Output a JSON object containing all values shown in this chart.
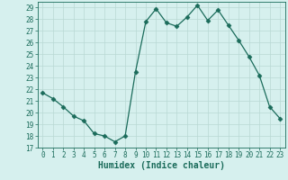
{
  "x": [
    0,
    1,
    2,
    3,
    4,
    5,
    6,
    7,
    8,
    9,
    10,
    11,
    12,
    13,
    14,
    15,
    16,
    17,
    18,
    19,
    20,
    21,
    22,
    23
  ],
  "y": [
    21.7,
    21.2,
    20.5,
    19.7,
    19.3,
    18.2,
    18.0,
    17.5,
    18.0,
    23.5,
    27.8,
    28.9,
    27.7,
    27.4,
    28.2,
    29.2,
    27.9,
    28.8,
    27.5,
    26.2,
    24.8,
    23.2,
    20.5,
    19.5
  ],
  "xlabel": "Humidex (Indice chaleur)",
  "xlim": [
    -0.5,
    23.5
  ],
  "ylim": [
    17,
    29.5
  ],
  "yticks": [
    17,
    18,
    19,
    20,
    21,
    22,
    23,
    24,
    25,
    26,
    27,
    28,
    29
  ],
  "xticks": [
    0,
    1,
    2,
    3,
    4,
    5,
    6,
    7,
    8,
    9,
    10,
    11,
    12,
    13,
    14,
    15,
    16,
    17,
    18,
    19,
    20,
    21,
    22,
    23
  ],
  "line_color": "#1a6b5a",
  "marker": "D",
  "marker_size": 2.5,
  "bg_color": "#d6f0ee",
  "grid_color": "#b8d8d4",
  "tick_color": "#1a6b5a",
  "label_color": "#1a6b5a",
  "font_name": "monospace",
  "tick_fontsize": 5.5,
  "xlabel_fontsize": 7.0
}
